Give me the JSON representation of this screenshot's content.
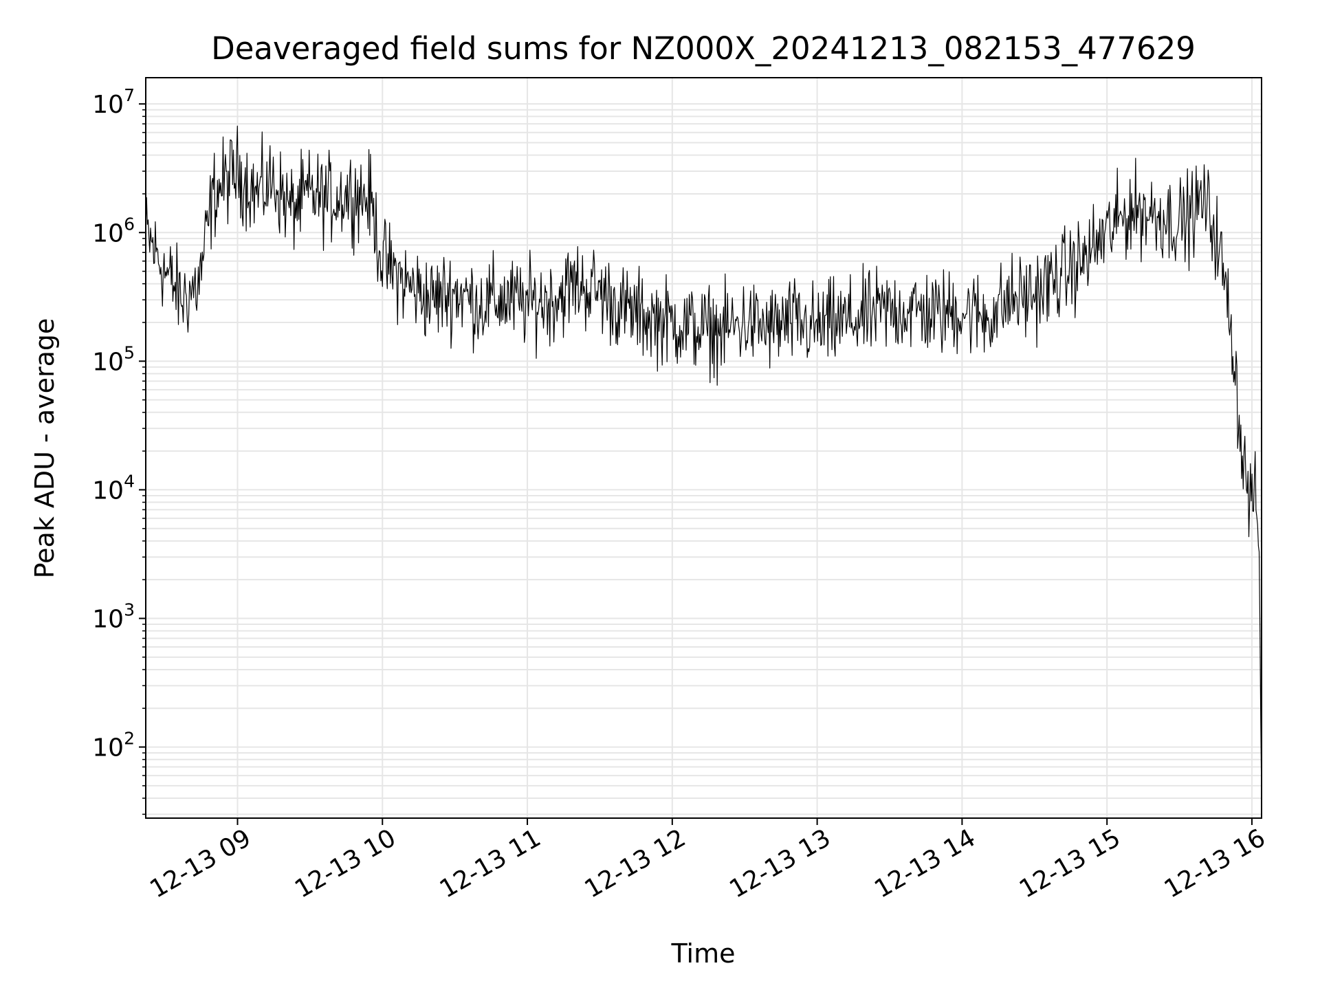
{
  "chart_data": {
    "type": "line",
    "title": "Deaveraged field sums for NZ000X_20241213_082153_477629",
    "xlabel": "Time",
    "ylabel": "Peak ADU - average",
    "yscale": "log",
    "ylim": [
      28,
      16000000
    ],
    "xlim": [
      "2024-12-13T08:22:00",
      "2024-12-13T16:04:00"
    ],
    "grid": "both",
    "line_color": "#000000",
    "x_ticks": [
      "12-13 09",
      "12-13 10",
      "12-13 11",
      "12-13 12",
      "12-13 13",
      "12-13 14",
      "12-13 15",
      "12-13 16"
    ],
    "y_ticks": [
      {
        "base": "10",
        "exp": "2"
      },
      {
        "base": "10",
        "exp": "3"
      },
      {
        "base": "10",
        "exp": "4"
      },
      {
        "base": "10",
        "exp": "5"
      },
      {
        "base": "10",
        "exp": "6"
      },
      {
        "base": "10",
        "exp": "7"
      }
    ],
    "series": [
      {
        "x": [
          "08:22",
          "08:30",
          "08:37",
          "08:44",
          "08:50",
          "08:55",
          "09:00",
          "09:08",
          "09:15",
          "09:22",
          "09:30",
          "09:37",
          "09:45",
          "09:50",
          "09:55",
          "10:00",
          "10:10",
          "10:20",
          "10:30",
          "10:40",
          "10:50",
          "11:00",
          "11:10",
          "11:20",
          "11:30",
          "11:40",
          "11:50",
          "12:00",
          "12:10",
          "12:20",
          "12:30",
          "12:40",
          "12:50",
          "13:00",
          "13:10",
          "13:20",
          "13:30",
          "13:40",
          "13:50",
          "14:00",
          "14:10",
          "14:20",
          "14:30",
          "14:40",
          "14:50",
          "15:00",
          "15:10",
          "15:20",
          "15:30",
          "15:35",
          "15:40",
          "15:45",
          "15:48",
          "15:52",
          "15:55",
          "15:58",
          "16:00",
          "16:02",
          "16:03",
          "16:04"
        ],
        "y": [
          1000000,
          500000,
          300000,
          400000,
          2000000,
          2500000,
          3000000,
          2000000,
          2500000,
          1500000,
          2000000,
          1800000,
          2000000,
          2000000,
          1800000,
          600000,
          400000,
          300000,
          350000,
          280000,
          300000,
          280000,
          300000,
          400000,
          350000,
          250000,
          220000,
          200000,
          180000,
          170000,
          200000,
          180000,
          200000,
          180000,
          200000,
          220000,
          250000,
          250000,
          230000,
          250000,
          220000,
          300000,
          330000,
          450000,
          600000,
          1000000,
          1500000,
          1400000,
          1200000,
          1400000,
          1800000,
          1000000,
          500000,
          150000,
          30000,
          10000,
          9000,
          7000,
          3000,
          40
        ]
      }
    ]
  }
}
